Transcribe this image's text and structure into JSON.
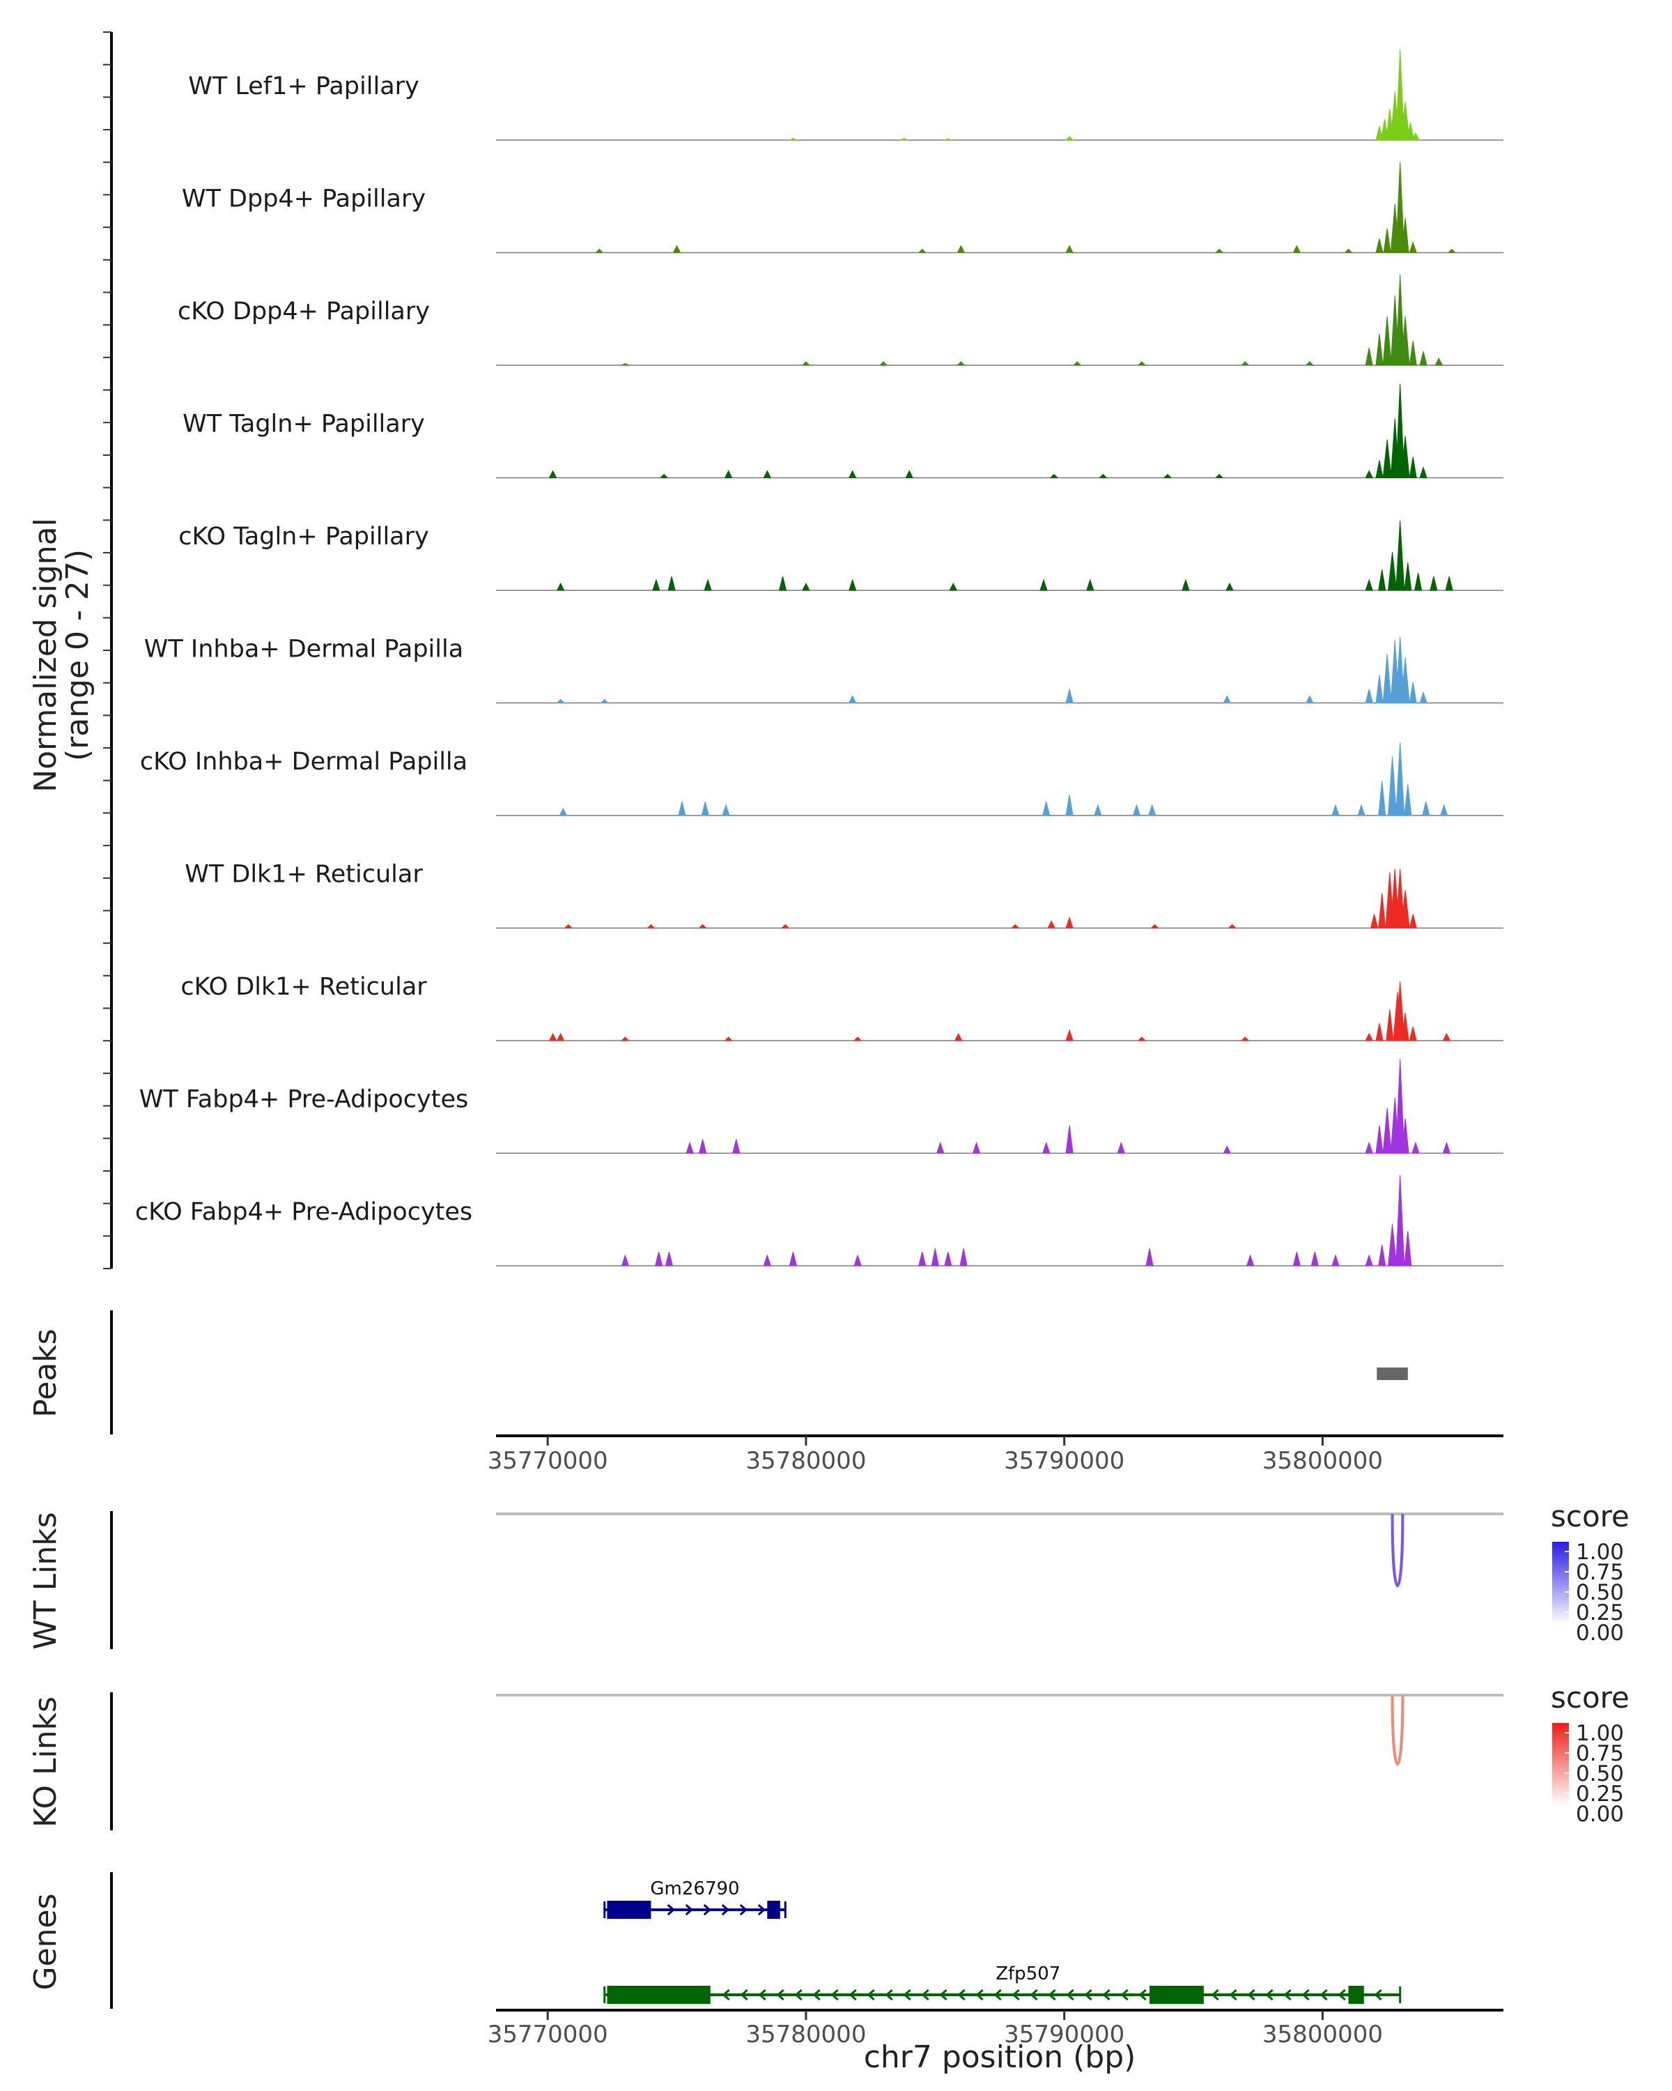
{
  "chart_data": {
    "type": "area",
    "title": "",
    "chromosome": "chr7",
    "x_range": [
      35768000,
      35807000
    ],
    "x_ticks": [
      35770000,
      35780000,
      35790000,
      35800000
    ],
    "x_tick_labels": [
      "35770000",
      "35780000",
      "35790000",
      "35800000"
    ],
    "xlabel": "chr7 position (bp)",
    "ylabel_line1": "Normalized signal",
    "ylabel_line2": "(range 0 - 27)",
    "ylim": [
      0,
      27
    ],
    "coverage_tracks": [
      {
        "name": "WT Lef1+ Papillary",
        "color": "#7CCD1A",
        "peaks": [
          [
            35802200,
            4
          ],
          [
            35802400,
            6
          ],
          [
            35802600,
            9
          ],
          [
            35802800,
            14
          ],
          [
            35803000,
            26
          ],
          [
            35803200,
            11
          ],
          [
            35803400,
            5
          ],
          [
            35803600,
            2
          ],
          [
            35790200,
            1
          ],
          [
            35783800,
            0.5
          ],
          [
            35779500,
            0.5
          ],
          [
            35785500,
            0.4
          ]
        ]
      },
      {
        "name": "WT Dpp4+ Papillary",
        "color": "#4B8B0B",
        "peaks": [
          [
            35802200,
            4
          ],
          [
            35802500,
            7
          ],
          [
            35802800,
            14
          ],
          [
            35803000,
            26
          ],
          [
            35803200,
            10
          ],
          [
            35803500,
            3
          ],
          [
            35775000,
            2
          ],
          [
            35786000,
            2
          ],
          [
            35790200,
            2
          ],
          [
            35799000,
            2
          ],
          [
            35772000,
            1
          ],
          [
            35784500,
            1
          ],
          [
            35796000,
            1
          ],
          [
            35805000,
            1
          ],
          [
            35801000,
            1
          ]
        ]
      },
      {
        "name": "cKO Dpp4+ Papillary",
        "color": "#3F8A10",
        "peaks": [
          [
            35801800,
            5
          ],
          [
            35802200,
            9
          ],
          [
            35802500,
            14
          ],
          [
            35802800,
            20
          ],
          [
            35803000,
            26
          ],
          [
            35803200,
            14
          ],
          [
            35803500,
            7
          ],
          [
            35803900,
            4
          ],
          [
            35804500,
            2
          ],
          [
            35780000,
            1
          ],
          [
            35783000,
            1
          ],
          [
            35786000,
            1
          ],
          [
            35793000,
            1
          ],
          [
            35797000,
            1
          ],
          [
            35790500,
            1
          ],
          [
            35799500,
            1
          ],
          [
            35773000,
            0.5
          ]
        ]
      },
      {
        "name": "WT Tagln+ Papillary",
        "color": "#006400",
        "peaks": [
          [
            35801800,
            2
          ],
          [
            35802200,
            5
          ],
          [
            35802500,
            11
          ],
          [
            35802800,
            17
          ],
          [
            35803000,
            27
          ],
          [
            35803200,
            12
          ],
          [
            35803500,
            6
          ],
          [
            35803900,
            3
          ],
          [
            35770200,
            2
          ],
          [
            35774500,
            1
          ],
          [
            35777000,
            2
          ],
          [
            35778500,
            2
          ],
          [
            35781800,
            2
          ],
          [
            35784000,
            2
          ],
          [
            35789600,
            1
          ],
          [
            35791500,
            1
          ],
          [
            35794000,
            1
          ],
          [
            35796000,
            1
          ]
        ]
      },
      {
        "name": "cKO Tagln+ Papillary",
        "color": "#006400",
        "peaks": [
          [
            35801800,
            3
          ],
          [
            35802300,
            6
          ],
          [
            35802700,
            11
          ],
          [
            35803000,
            20
          ],
          [
            35803300,
            8
          ],
          [
            35803700,
            5
          ],
          [
            35804300,
            4
          ],
          [
            35804900,
            4
          ],
          [
            35770500,
            2
          ],
          [
            35774200,
            3
          ],
          [
            35774800,
            4
          ],
          [
            35776200,
            3
          ],
          [
            35779100,
            4
          ],
          [
            35780000,
            2
          ],
          [
            35781800,
            3
          ],
          [
            35785700,
            2
          ],
          [
            35789200,
            3
          ],
          [
            35791000,
            3
          ],
          [
            35794700,
            3
          ],
          [
            35796400,
            2
          ]
        ]
      },
      {
        "name": "WT Inhba+ Dermal Papilla",
        "color": "#56A0D8",
        "peaks": [
          [
            35801800,
            4
          ],
          [
            35802200,
            8
          ],
          [
            35802500,
            14
          ],
          [
            35802800,
            18
          ],
          [
            35803000,
            19
          ],
          [
            35803200,
            13
          ],
          [
            35803500,
            6
          ],
          [
            35803900,
            3
          ],
          [
            35790200,
            4
          ],
          [
            35781800,
            2
          ],
          [
            35796300,
            2
          ],
          [
            35799500,
            2
          ],
          [
            35770500,
            1
          ],
          [
            35772200,
            1
          ]
        ]
      },
      {
        "name": "cKO Inhba+ Dermal Papilla",
        "color": "#56A0D8",
        "peaks": [
          [
            35800500,
            3
          ],
          [
            35801500,
            3
          ],
          [
            35802300,
            10
          ],
          [
            35802700,
            17
          ],
          [
            35803000,
            21
          ],
          [
            35803300,
            9
          ],
          [
            35804000,
            4
          ],
          [
            35804700,
            3
          ],
          [
            35770600,
            2
          ],
          [
            35775200,
            4
          ],
          [
            35776100,
            4
          ],
          [
            35776900,
            3
          ],
          [
            35789300,
            4
          ],
          [
            35790200,
            6
          ],
          [
            35791300,
            3
          ],
          [
            35792800,
            3
          ],
          [
            35793400,
            3
          ]
        ]
      },
      {
        "name": "WT Dlk1+ Reticular",
        "color": "#EE2B22",
        "peaks": [
          [
            35802000,
            4
          ],
          [
            35802300,
            10
          ],
          [
            35802600,
            16
          ],
          [
            35802800,
            17
          ],
          [
            35803000,
            17
          ],
          [
            35803200,
            11
          ],
          [
            35803500,
            4
          ],
          [
            35790200,
            3
          ],
          [
            35789500,
            2
          ],
          [
            35788100,
            1
          ],
          [
            35793500,
            1
          ],
          [
            35776000,
            1
          ],
          [
            35779200,
            1
          ],
          [
            35770800,
            1
          ],
          [
            35774000,
            1
          ],
          [
            35796500,
            1
          ]
        ]
      },
      {
        "name": "cKO Dlk1+ Reticular",
        "color": "#EE2B22",
        "peaks": [
          [
            35801800,
            2
          ],
          [
            35802200,
            5
          ],
          [
            35802600,
            9
          ],
          [
            35802900,
            14
          ],
          [
            35803000,
            17
          ],
          [
            35803200,
            8
          ],
          [
            35803500,
            4
          ],
          [
            35804800,
            2
          ],
          [
            35770200,
            2
          ],
          [
            35770500,
            2
          ],
          [
            35785900,
            2
          ],
          [
            35790200,
            3
          ],
          [
            35793000,
            1
          ],
          [
            35777000,
            1
          ],
          [
            35782000,
            1
          ],
          [
            35797000,
            1
          ],
          [
            35773000,
            1
          ]
        ]
      },
      {
        "name": "WT Fabp4+ Pre-Adipocytes",
        "color": "#A233E0",
        "peaks": [
          [
            35801800,
            3
          ],
          [
            35802200,
            8
          ],
          [
            35802500,
            13
          ],
          [
            35802800,
            16
          ],
          [
            35803000,
            27
          ],
          [
            35803200,
            10
          ],
          [
            35803600,
            3
          ],
          [
            35804800,
            3
          ],
          [
            35790200,
            8
          ],
          [
            35775500,
            3
          ],
          [
            35776000,
            4
          ],
          [
            35777300,
            4
          ],
          [
            35785200,
            3
          ],
          [
            35786600,
            3
          ],
          [
            35789300,
            3
          ],
          [
            35792200,
            3
          ],
          [
            35796300,
            2
          ]
        ]
      },
      {
        "name": "cKO Fabp4+ Pre-Adipocytes",
        "color": "#A233E0",
        "peaks": [
          [
            35801800,
            3
          ],
          [
            35802300,
            6
          ],
          [
            35802700,
            12
          ],
          [
            35803000,
            26
          ],
          [
            35803300,
            10
          ],
          [
            35773000,
            3
          ],
          [
            35774300,
            4
          ],
          [
            35774700,
            4
          ],
          [
            35778500,
            3
          ],
          [
            35779500,
            4
          ],
          [
            35782000,
            3
          ],
          [
            35784500,
            4
          ],
          [
            35785000,
            5
          ],
          [
            35785500,
            4
          ],
          [
            35786100,
            5
          ],
          [
            35793300,
            5
          ],
          [
            35797200,
            3
          ],
          [
            35799000,
            4
          ],
          [
            35799700,
            4
          ],
          [
            35800500,
            3
          ]
        ]
      }
    ],
    "peaks_track": {
      "label": "Peaks",
      "regions": [
        [
          35802100,
          35803300
        ]
      ],
      "color": "#666666"
    },
    "link_tracks": [
      {
        "label": "WT Links",
        "baseline_color": "#BDBDBD",
        "link_color": "#7A55E8",
        "links": [
          [
            35802700,
            35803100,
            0.72
          ]
        ],
        "legend_title": "score",
        "legend_low": "#FFFFFF",
        "legend_high": "#2A1BE6",
        "legend_ticks": [
          "1.00",
          "0.75",
          "0.50",
          "0.25",
          "0.00"
        ]
      },
      {
        "label": "KO Links",
        "baseline_color": "#BDBDBD",
        "link_color": "#F08A70",
        "links": [
          [
            35802700,
            35803100,
            0.55
          ]
        ],
        "legend_title": "score",
        "legend_low": "#FFFFFF",
        "legend_high": "#EE1F14",
        "legend_ticks": [
          "1.00",
          "0.75",
          "0.50",
          "0.25",
          "0.00"
        ]
      }
    ],
    "genes_track": {
      "label": "Genes",
      "genes": [
        {
          "name": "Gm26790",
          "strand": "+",
          "color": "#00008B",
          "start": 35772200,
          "end": 35779200,
          "exons": [
            [
              35772300,
              35774000
            ],
            [
              35778500,
              35779000
            ]
          ]
        },
        {
          "name": "Zfp507",
          "strand": "-",
          "color": "#006400",
          "start": 35772200,
          "end": 35803000,
          "exons": [
            [
              35772300,
              35776300
            ],
            [
              35793300,
              35795400
            ],
            [
              35801000,
              35801600
            ]
          ]
        }
      ]
    }
  }
}
